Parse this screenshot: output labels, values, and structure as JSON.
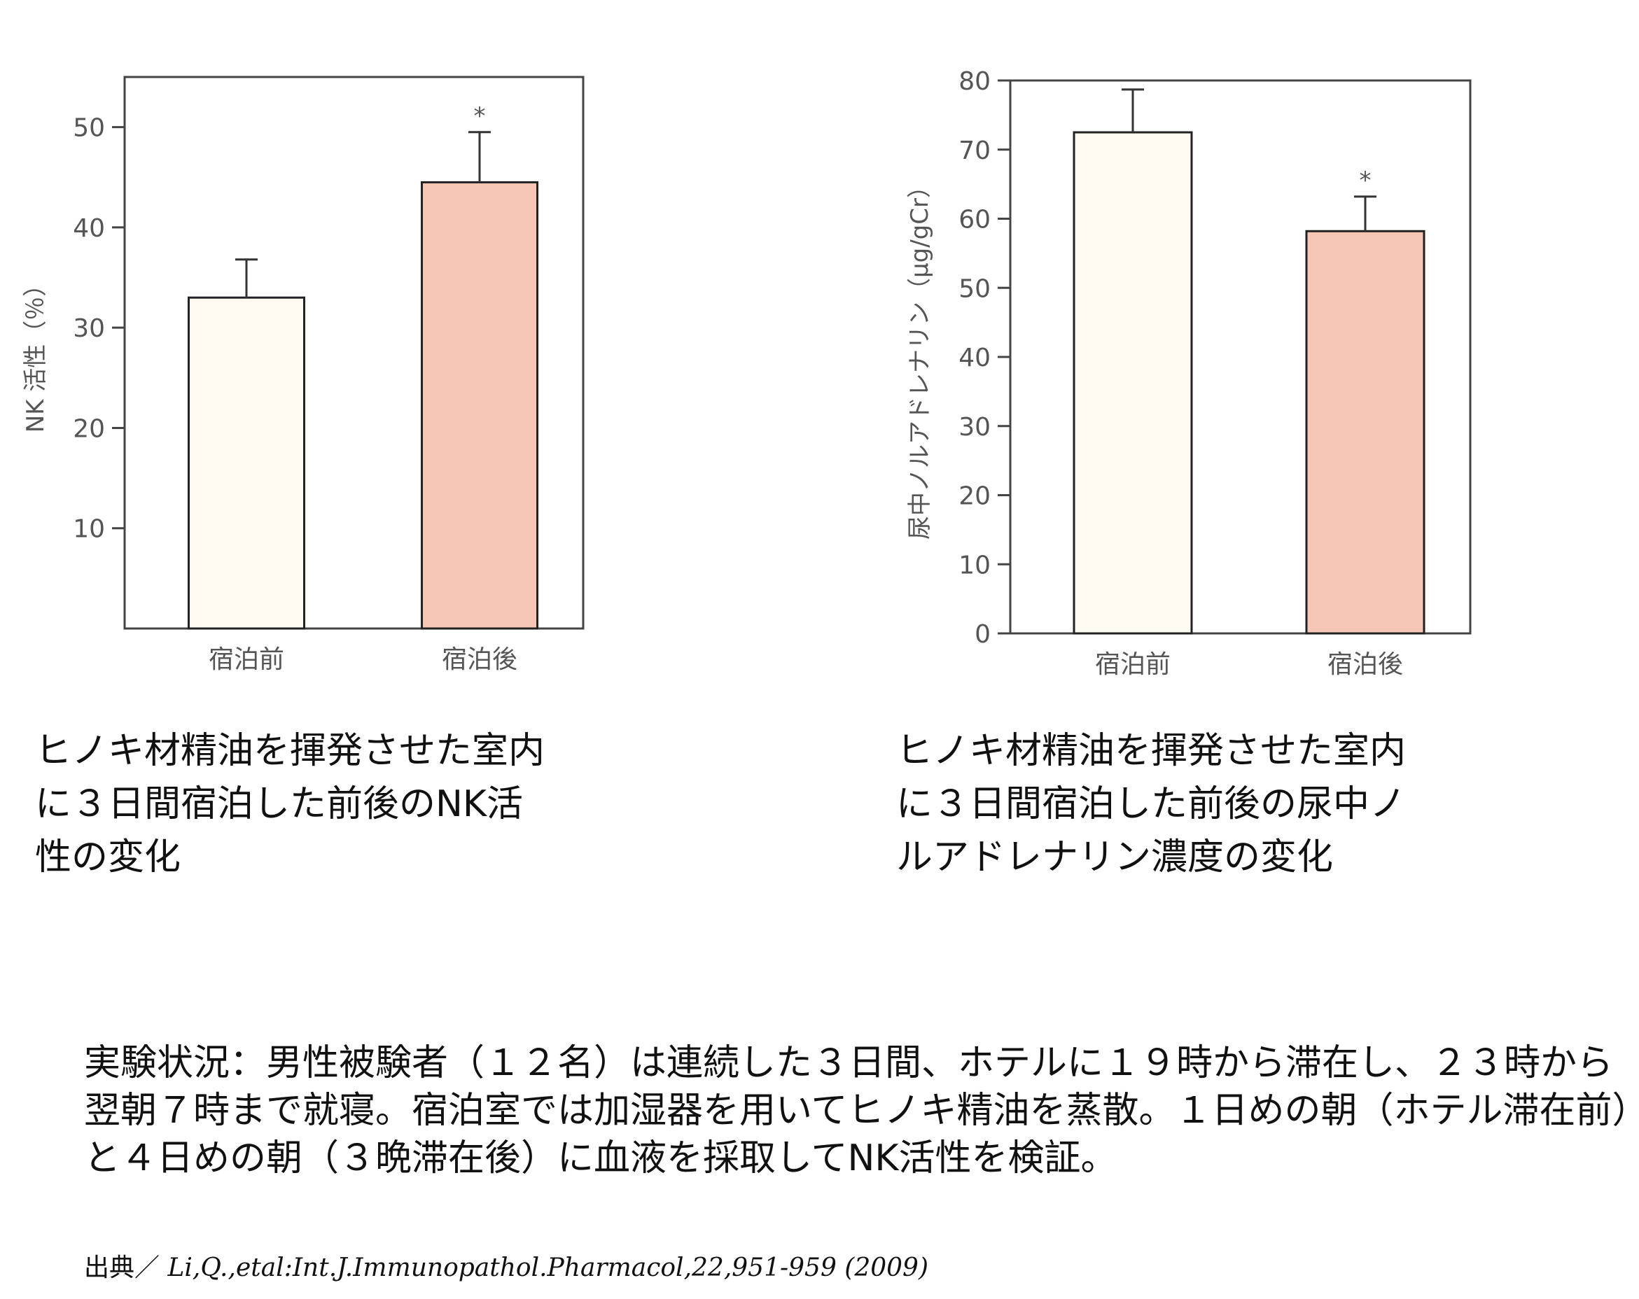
{
  "chart_data": [
    {
      "type": "bar",
      "categories": [
        "宿泊前",
        "宿泊後"
      ],
      "values": [
        33,
        44.5
      ],
      "error": [
        3.8,
        5
      ],
      "significance": [
        "",
        "*"
      ],
      "ylabel": "NK 活性（％）",
      "ylim": [
        0,
        55
      ],
      "yticks": [
        10,
        20,
        30,
        40,
        50
      ],
      "colors": [
        "#fffaf0",
        "#f6c6b4"
      ],
      "grid": false
    },
    {
      "type": "bar",
      "categories": [
        "宿泊前",
        "宿泊後"
      ],
      "values": [
        72.5,
        58.2
      ],
      "error": [
        6.2,
        5
      ],
      "significance": [
        "",
        "*"
      ],
      "ylabel": "尿中ノルアドレナリン（μg/gCr）",
      "ylim": [
        0,
        80
      ],
      "yticks": [
        0,
        10,
        20,
        30,
        40,
        50,
        60,
        70,
        80
      ],
      "colors": [
        "#fffaf0",
        "#f6c6b4"
      ],
      "grid": false
    }
  ],
  "captions": {
    "left": "ヒノキ材精油を揮発させた室内\nに３日間宿泊した前後のNK活\n性の変化",
    "right": "ヒノキ材精油を揮発させた室内\nに３日間宿泊した前後の尿中ノ\nルアドレナリン濃度の変化"
  },
  "experiment": "実験状況：男性被験者（１２名）は連続した３日間、ホテルに１９時から滞在し、２３時から翌朝７時まで就寝。宿泊室では加湿器を用いてヒノキ精油を蒸散。１日めの朝（ホテル滞在前）と４日めの朝（３晩滞在後）に血液を採取してNK活性を検証。",
  "source": {
    "label": "出典／",
    "reference": "Li,Q.,etal:Int.J.Immunopathol.Pharmacol,22,951-959 (2009)"
  }
}
